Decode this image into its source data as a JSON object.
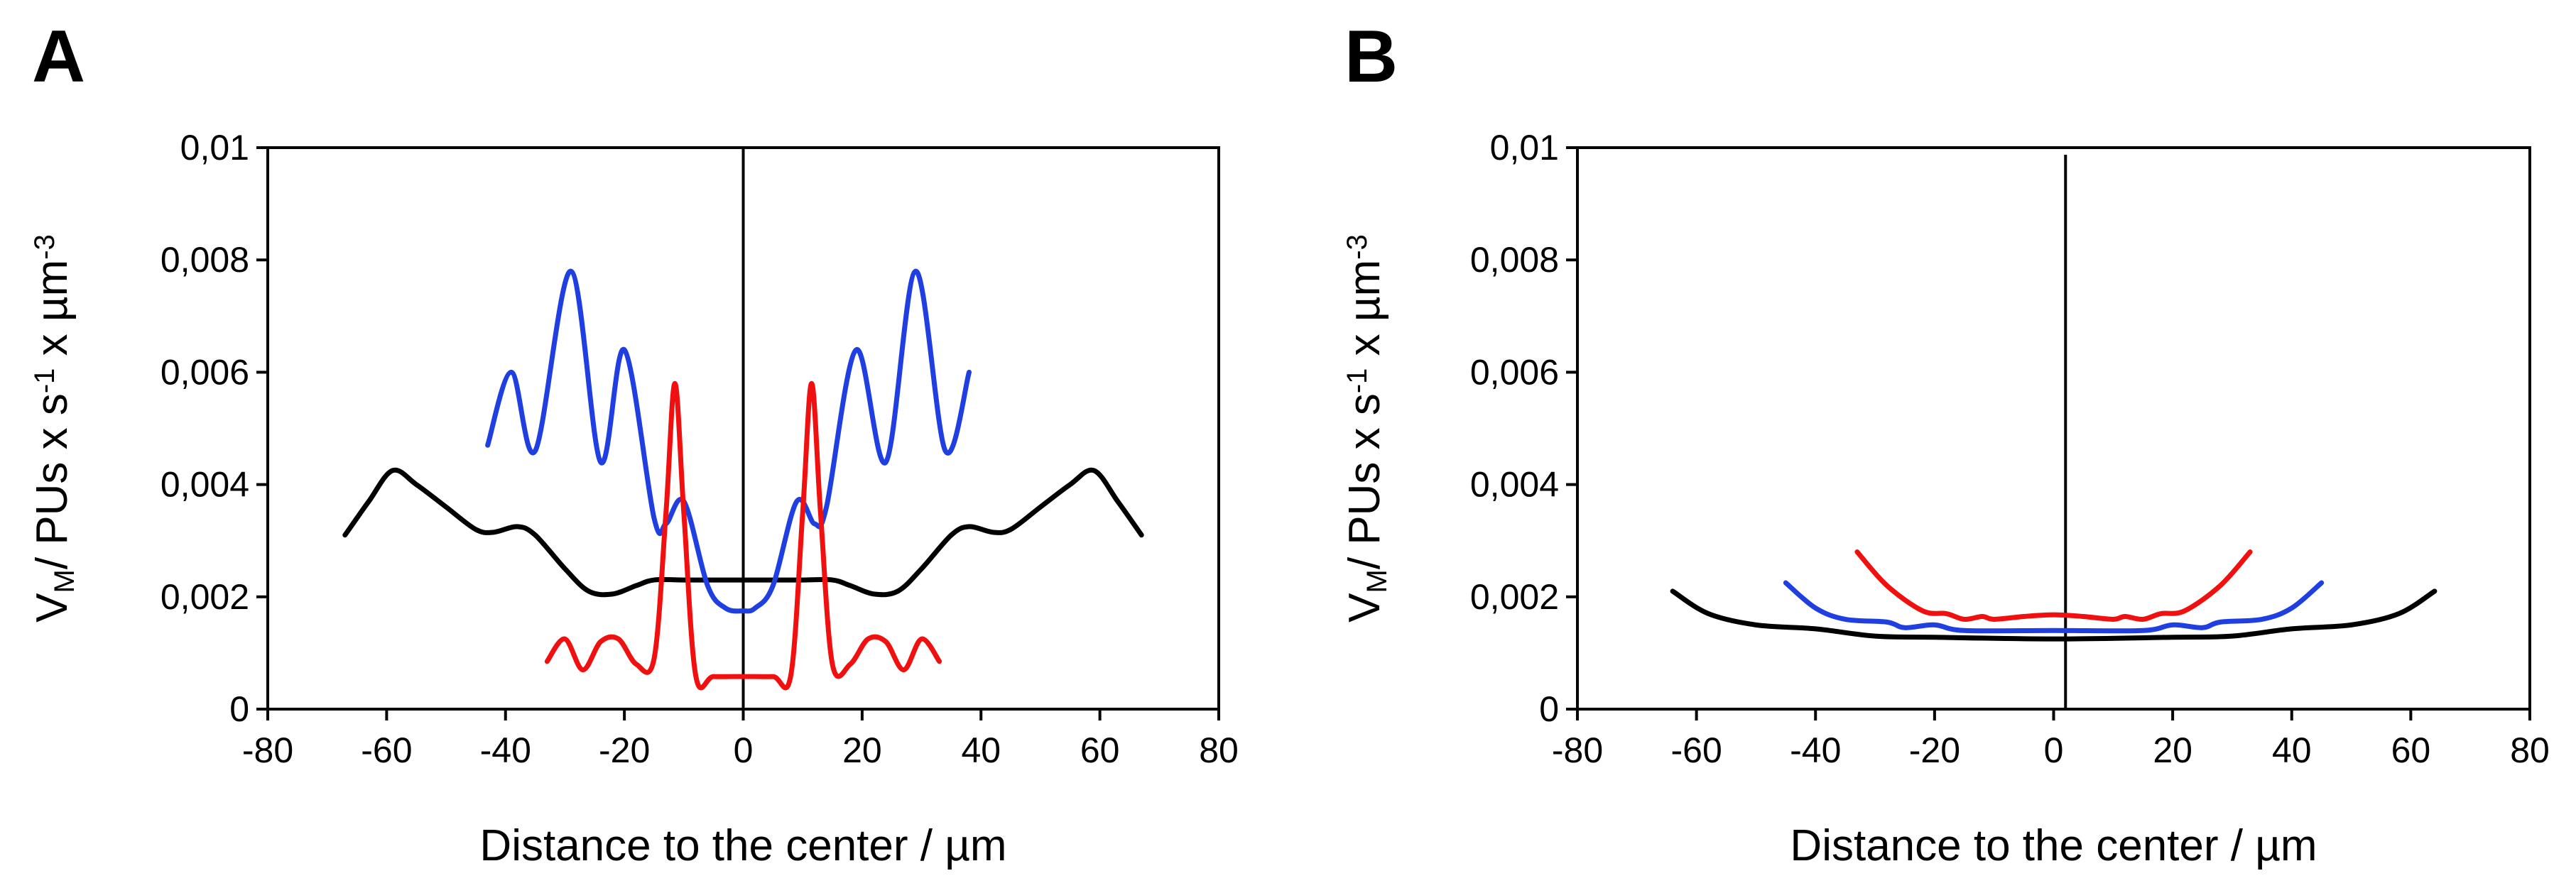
{
  "chart_data": [
    {
      "type": "line",
      "panel": "A",
      "xlabel": "Distance to the center / µm",
      "ylabel": [
        "V",
        "M",
        "/ PUs x s",
        "-1",
        " x µm",
        "-3"
      ],
      "xlim": [
        -80,
        80
      ],
      "xticks": [
        -80,
        -60,
        -40,
        -20,
        0,
        20,
        40,
        60,
        80
      ],
      "ylim": [
        0,
        0.01
      ],
      "yticks": [
        0,
        {
          "value": 0.002,
          "label": "0,002"
        },
        {
          "value": 0.004,
          "label": "0,004"
        },
        {
          "value": 0.006,
          "label": "0,006"
        },
        {
          "value": 0.008,
          "label": "0,008"
        },
        {
          "value": 0.01,
          "label": "0,01"
        }
      ],
      "vline": 0,
      "series": [
        {
          "color": "#000000",
          "x": [
            -67,
            -63,
            -59,
            -55,
            -50,
            -45,
            -42,
            -38,
            -35,
            -30,
            -26,
            -22,
            -18,
            -15,
            -10,
            -5,
            0,
            5,
            10,
            15,
            18,
            22,
            26,
            30,
            35,
            38,
            42,
            45,
            50,
            55,
            59,
            63,
            67
          ],
          "values": [
            0.0031,
            0.0037,
            0.00425,
            0.004,
            0.0036,
            0.0032,
            0.00315,
            0.00325,
            0.0031,
            0.0025,
            0.0021,
            0.00205,
            0.0022,
            0.0023,
            0.0023,
            0.0023,
            0.0023,
            0.0023,
            0.0023,
            0.0023,
            0.0022,
            0.00205,
            0.0021,
            0.0025,
            0.0031,
            0.00325,
            0.00315,
            0.0032,
            0.0036,
            0.004,
            0.00425,
            0.0037,
            0.0031
          ]
        },
        {
          "color": "#1f3fe0",
          "x": [
            -43,
            -39,
            -35,
            -29,
            -24,
            -20,
            -15,
            -13,
            -10,
            -6,
            -3,
            0,
            2,
            5,
            9,
            12,
            14,
            19,
            24,
            29,
            34,
            38
          ],
          "values": [
            0.0047,
            0.006,
            0.0046,
            0.0078,
            0.0044,
            0.0064,
            0.0034,
            0.0033,
            0.0037,
            0.0022,
            0.0018,
            0.00175,
            0.0018,
            0.0022,
            0.0037,
            0.0033,
            0.0036,
            0.0064,
            0.0044,
            0.0078,
            0.0046,
            0.006
          ]
        },
        {
          "color": "#f01010",
          "x": [
            -33,
            -30,
            -27,
            -24,
            -21,
            -18,
            -15,
            -13,
            -11.5,
            -10,
            -8,
            -5,
            0,
            5,
            8,
            10,
            11.5,
            13,
            15,
            18,
            21,
            24,
            27,
            30,
            33
          ],
          "values": [
            0.00085,
            0.00125,
            0.0007,
            0.0012,
            0.00125,
            0.0008,
            0.0009,
            0.0035,
            0.0058,
            0.0035,
            0.0006,
            0.00058,
            0.00058,
            0.00058,
            0.0006,
            0.0035,
            0.0058,
            0.0035,
            0.0008,
            0.0008,
            0.00125,
            0.0012,
            0.0007,
            0.00125,
            0.00085
          ]
        }
      ]
    },
    {
      "type": "line",
      "panel": "B",
      "xlabel": "Distance to the center / µm",
      "ylabel": [
        "V",
        "M",
        "/ PUs x s",
        "-1",
        " x µm",
        "-3"
      ],
      "xlim": [
        -80,
        80
      ],
      "xticks": [
        -80,
        -60,
        -40,
        -20,
        0,
        20,
        40,
        60,
        80
      ],
      "ylim": [
        0,
        0.01
      ],
      "yticks": [
        0,
        {
          "value": 0.002,
          "label": "0,002"
        },
        {
          "value": 0.004,
          "label": "0,004"
        },
        {
          "value": 0.006,
          "label": "0,006"
        },
        {
          "value": 0.008,
          "label": "0,008"
        },
        {
          "value": 0.01,
          "label": "0,01"
        }
      ],
      "vline": 2,
      "series": [
        {
          "color": "#000000",
          "x": [
            -64,
            -58,
            -50,
            -40,
            -30,
            -20,
            0,
            20,
            30,
            40,
            50,
            58,
            64
          ],
          "values": [
            0.0021,
            0.0017,
            0.0015,
            0.00143,
            0.0013,
            0.00128,
            0.00125,
            0.00128,
            0.0013,
            0.00143,
            0.0015,
            0.0017,
            0.0021
          ]
        },
        {
          "color": "#1f3fe0",
          "x": [
            -45,
            -40,
            -35,
            -28,
            -25,
            -20,
            -15,
            0,
            15,
            20,
            25,
            28,
            35,
            40,
            45
          ],
          "values": [
            0.00225,
            0.0018,
            0.0016,
            0.00155,
            0.00145,
            0.0015,
            0.0014,
            0.0014,
            0.0014,
            0.0015,
            0.00145,
            0.00155,
            0.0016,
            0.0018,
            0.00225
          ]
        },
        {
          "color": "#f01010",
          "x": [
            -33,
            -28,
            -22,
            -18,
            -15,
            -12,
            -10,
            -5,
            0,
            5,
            10,
            12,
            15,
            18,
            22,
            28,
            33
          ],
          "values": [
            0.0028,
            0.0022,
            0.00175,
            0.0017,
            0.0016,
            0.00165,
            0.0016,
            0.00165,
            0.00168,
            0.00165,
            0.0016,
            0.00165,
            0.0016,
            0.0017,
            0.00175,
            0.0022,
            0.0028
          ]
        }
      ]
    }
  ]
}
